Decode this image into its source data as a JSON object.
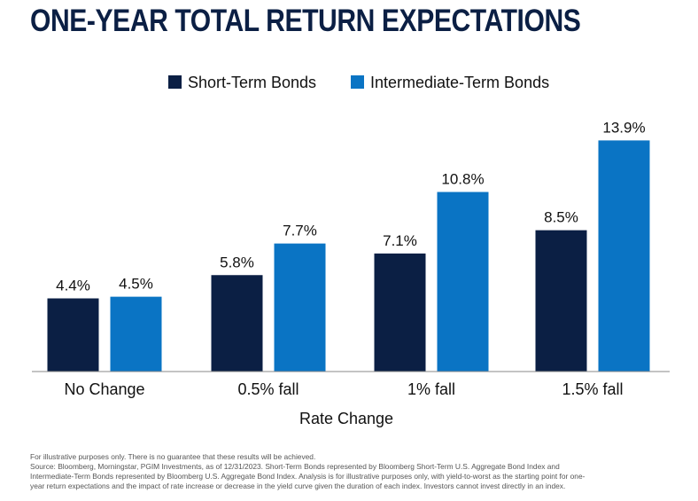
{
  "title": "ONE-YEAR TOTAL RETURN EXPECTATIONS",
  "chart_data": {
    "type": "bar",
    "categories": [
      "No Change",
      "0.5% fall",
      "1% fall",
      "1.5% fall"
    ],
    "series": [
      {
        "name": "Short-Term Bonds",
        "color": "#0b1f44",
        "values": [
          4.4,
          5.8,
          7.1,
          8.5
        ],
        "labels": [
          "4.4%",
          "5.8%",
          "7.1%",
          "8.5%"
        ]
      },
      {
        "name": "Intermediate-Term Bonds",
        "color": "#0a74c4",
        "values": [
          4.5,
          7.7,
          10.8,
          13.9
        ],
        "labels": [
          "4.5%",
          "7.7%",
          "10.8%",
          "13.9%"
        ]
      }
    ],
    "xlabel": "Rate Change",
    "ylabel": "",
    "ylim": [
      0,
      15
    ],
    "grid": false,
    "legend": "top-center"
  },
  "footnote": {
    "line1": "For illustrative purposes only. There is no guarantee that these results will be achieved.",
    "line2": "Source: Bloomberg, Morningstar, PGIM Investments, as of 12/31/2023. Short-Term Bonds represented by Bloomberg Short-Term U.S. Aggregate Bond Index and",
    "line3": "Intermediate-Term Bonds represented by Bloomberg U.S. Aggregate Bond Index. Analysis is for illustrative purposes only, with yield-to-worst as the starting point for one-",
    "line4": "year return expectations and the impact of rate increase or decrease in the yield curve given the duration of each index. Investors cannot invest directly in an index."
  }
}
